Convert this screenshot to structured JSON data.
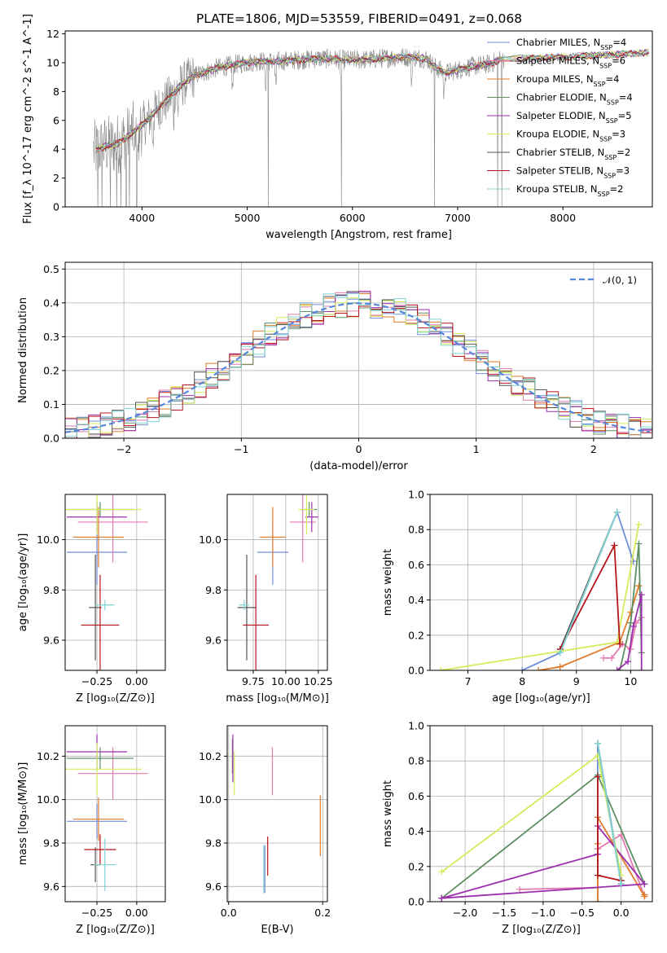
{
  "figure": {
    "title": "PLATE=1806, MJD=53559, FIBERID=0491, z=0.068"
  },
  "colors": {
    "Chabrier MILES": "#6f8ed9",
    "Salpeter MILES": "#e27bb0",
    "Kroupa MILES": "#e07b2b",
    "Chabrier ELODIE": "#5e8f63",
    "Salpeter ELODIE": "#9b2fae",
    "Kroupa ELODIE": "#d4ec5a",
    "Chabrier STELIB": "#555555",
    "Salpeter STELIB": "#b5151b",
    "Kroupa STELIB": "#7fd4d4",
    "data": "#888888",
    "normal": "#5588dd"
  },
  "chart_data": [
    {
      "id": "spectrum",
      "type": "line",
      "title": "PLATE=1806, MJD=53559, FIBERID=0491, z=0.068",
      "xlabel": "wavelength [Angstrom, rest frame]",
      "ylabel": "Flux [f_λ 10^-17 erg cm^-2 s^-1 A^-1]",
      "xlim": [
        3270,
        8850
      ],
      "ylim": [
        0,
        12.2
      ],
      "xticks": [
        "4000",
        "5000",
        "6000",
        "7000",
        "8000"
      ],
      "yticks": [
        "0",
        "2",
        "4",
        "6",
        "8",
        "10",
        "12"
      ],
      "grid": false,
      "legend_position": "right",
      "continuum": {
        "x": [
          3550,
          3650,
          3750,
          3850,
          3950,
          4050,
          4150,
          4250,
          4350,
          4500,
          4700,
          4900,
          5100,
          5300,
          5500,
          5700,
          5900,
          6100,
          6300,
          6500,
          6700,
          6800,
          6900,
          7000,
          7100,
          7200,
          7300,
          7400,
          7500,
          7700,
          8000,
          8300,
          8600,
          8800
        ],
        "y": [
          3.9,
          4.2,
          4.3,
          4.8,
          5.4,
          6.0,
          6.8,
          7.5,
          8.3,
          9.1,
          9.6,
          9.9,
          10.1,
          10.1,
          10.2,
          10.3,
          10.2,
          10.2,
          10.3,
          10.4,
          10.3,
          9.6,
          9.3,
          9.5,
          9.7,
          9.8,
          9.9,
          10.2,
          10.3,
          10.3,
          10.4,
          10.5,
          10.6,
          10.7
        ]
      },
      "series": [
        {
          "name": "Chabrier MILES, N_SSP=4"
        },
        {
          "name": "Salpeter MILES, N_SSP=6"
        },
        {
          "name": "Kroupa MILES, N_SSP=4"
        },
        {
          "name": "Chabrier ELODIE, N_SSP=4"
        },
        {
          "name": "Salpeter ELODIE, N_SSP=5"
        },
        {
          "name": "Kroupa ELODIE, N_SSP=3"
        },
        {
          "name": "Chabrier STELIB, N_SSP=2"
        },
        {
          "name": "Salpeter STELIB, N_SSP=3"
        },
        {
          "name": "Kroupa STELIB, N_SSP=2"
        }
      ]
    },
    {
      "id": "residuals",
      "type": "line",
      "xlabel": "(data-model)/error",
      "ylabel": "Normed distribution",
      "xlim": [
        -2.5,
        2.5
      ],
      "ylim": [
        0,
        0.52
      ],
      "xticks": [
        "−2",
        "−1",
        "0",
        "1",
        "2"
      ],
      "yticks": [
        "0.0",
        "0.1",
        "0.2",
        "0.3",
        "0.4",
        "0.5"
      ],
      "grid": true,
      "legend": "𝒩(0, 1)",
      "legend_position": "top-right",
      "bins": 50
    },
    {
      "id": "age-vs-Z",
      "type": "scatter",
      "xlabel": "Z [log₁₀(Z/Z⊙)]",
      "ylabel": "age  [log₁₀(age/yr)]",
      "xlim": [
        -0.45,
        0.18
      ],
      "ylim": [
        9.48,
        10.18
      ],
      "xticks": [
        "−0.25",
        "0.00"
      ],
      "yticks": [
        "9.6",
        "9.8",
        "10.0"
      ],
      "grid": true,
      "points": [
        {
          "model": "Chabrier MILES",
          "x": -0.25,
          "y": 9.95,
          "xerr": 0.19,
          "yerr": 0.13
        },
        {
          "model": "Salpeter MILES",
          "x": -0.15,
          "y": 10.07,
          "xerr": 0.22,
          "yerr": 0.16
        },
        {
          "model": "Kroupa MILES",
          "x": -0.24,
          "y": 10.01,
          "xerr": 0.16,
          "yerr": 0.12
        },
        {
          "model": "Chabrier ELODIE",
          "x": -0.23,
          "y": 10.12,
          "xerr": 0.21,
          "yerr": 0.03
        },
        {
          "model": "Salpeter ELODIE",
          "x": -0.25,
          "y": 10.09,
          "xerr": 0.19,
          "yerr": 0.06
        },
        {
          "model": "Kroupa ELODIE",
          "x": -0.25,
          "y": 10.12,
          "xerr": 0.28,
          "yerr": 0.1
        },
        {
          "model": "Chabrier STELIB",
          "x": -0.26,
          "y": 9.73,
          "xerr": 0.04,
          "yerr": 0.21
        },
        {
          "model": "Salpeter STELIB",
          "x": -0.23,
          "y": 9.66,
          "xerr": 0.12,
          "yerr": 0.2
        },
        {
          "model": "Kroupa STELIB",
          "x": -0.2,
          "y": 9.74,
          "xerr": 0.06,
          "yerr": 0.02
        }
      ]
    },
    {
      "id": "age-vs-mass",
      "type": "scatter",
      "xlabel": "mass [log₁₀(M/M⊙)]",
      "ylabel": "",
      "xlim": [
        9.55,
        10.32
      ],
      "ylim": [
        9.48,
        10.18
      ],
      "xticks": [
        "9.75",
        "10.00",
        "10.25"
      ],
      "yticks": [
        "9.6",
        "9.8",
        "10.0"
      ],
      "grid": true,
      "points": [
        {
          "model": "Chabrier MILES",
          "x": 9.9,
          "y": 9.95,
          "xerr": 0.12,
          "yerr": 0.13
        },
        {
          "model": "Salpeter MILES",
          "x": 10.13,
          "y": 10.07,
          "xerr": 0.1,
          "yerr": 0.16
        },
        {
          "model": "Kroupa MILES",
          "x": 9.9,
          "y": 10.01,
          "xerr": 0.1,
          "yerr": 0.12
        },
        {
          "model": "Chabrier ELODIE",
          "x": 10.18,
          "y": 10.12,
          "xerr": 0.06,
          "yerr": 0.03
        },
        {
          "model": "Salpeter ELODIE",
          "x": 10.2,
          "y": 10.09,
          "xerr": 0.05,
          "yerr": 0.06
        },
        {
          "model": "Kroupa ELODIE",
          "x": 10.16,
          "y": 10.12,
          "xerr": 0.06,
          "yerr": 0.1
        },
        {
          "model": "Chabrier STELIB",
          "x": 9.7,
          "y": 9.73,
          "xerr": 0.07,
          "yerr": 0.21
        },
        {
          "model": "Salpeter STELIB",
          "x": 9.77,
          "y": 9.66,
          "xerr": 0.1,
          "yerr": 0.2
        },
        {
          "model": "Kroupa STELIB",
          "x": 9.68,
          "y": 9.74,
          "xerr": 0.04,
          "yerr": 0.02
        }
      ]
    },
    {
      "id": "mass-weight-vs-age",
      "type": "line",
      "xlabel": "age  [log₁₀(age/yr)]",
      "ylabel": "mass weight",
      "xlim": [
        6.3,
        10.4
      ],
      "ylim": [
        0,
        1
      ],
      "xticks": [
        "7",
        "8",
        "9",
        "10"
      ],
      "yticks": [
        "0.0",
        "0.2",
        "0.4",
        "0.6",
        "0.8",
        "1.0"
      ],
      "grid": true,
      "series": [
        {
          "model": "Chabrier MILES",
          "x": [
            8.0,
            8.7,
            9.75,
            10.05
          ],
          "y": [
            0.0,
            0.1,
            0.9,
            0.62
          ]
        },
        {
          "model": "Salpeter MILES",
          "x": [
            9.5,
            9.65,
            9.85,
            10.0,
            10.1,
            10.2
          ],
          "y": [
            0.07,
            0.07,
            0.15,
            0.12,
            0.27,
            0.3
          ]
        },
        {
          "model": "Kroupa MILES",
          "x": [
            8.3,
            8.7,
            9.8,
            10.0,
            10.15
          ],
          "y": [
            0.0,
            0.02,
            0.16,
            0.33,
            0.48
          ]
        },
        {
          "model": "Chabrier ELODIE",
          "x": [
            9.8,
            10.0,
            10.15,
            10.2
          ],
          "y": [
            0.0,
            0.27,
            0.72,
            0.1
          ]
        },
        {
          "model": "Salpeter ELODIE",
          "x": [
            9.75,
            9.95,
            10.05,
            10.2,
            10.2
          ],
          "y": [
            0.0,
            0.05,
            0.25,
            0.43,
            0.0
          ]
        },
        {
          "model": "Kroupa ELODIE",
          "x": [
            6.5,
            9.75,
            10.15
          ],
          "y": [
            0.0,
            0.16,
            0.83
          ]
        },
        {
          "model": "Chabrier STELIB",
          "x": [
            8.7,
            9.75
          ],
          "y": [
            0.12,
            0.9
          ]
        },
        {
          "model": "Salpeter STELIB",
          "x": [
            8.7,
            9.7,
            9.8
          ],
          "y": [
            0.12,
            0.71,
            0.15
          ]
        },
        {
          "model": "Kroupa STELIB",
          "x": [
            8.7,
            9.75
          ],
          "y": [
            0.1,
            0.9
          ]
        }
      ]
    },
    {
      "id": "mass-vs-Z",
      "type": "scatter",
      "xlabel": "Z [log₁₀(Z/Z⊙)]",
      "ylabel": "mass [log₁₀(M/M⊙)]",
      "xlim": [
        -0.45,
        0.18
      ],
      "ylim": [
        9.53,
        10.34
      ],
      "xticks": [
        "−0.25",
        "0.00"
      ],
      "yticks": [
        "9.6",
        "9.8",
        "10.0",
        "10.2"
      ],
      "grid": true,
      "points": [
        {
          "model": "Chabrier MILES",
          "x": -0.25,
          "y": 9.9,
          "xerr": 0.19,
          "yerr": 0.08
        },
        {
          "model": "Salpeter MILES",
          "x": -0.15,
          "y": 10.12,
          "xerr": 0.22,
          "yerr": 0.12
        },
        {
          "model": "Kroupa MILES",
          "x": -0.24,
          "y": 9.91,
          "xerr": 0.16,
          "yerr": 0.1
        },
        {
          "model": "Chabrier ELODIE",
          "x": -0.23,
          "y": 10.19,
          "xerr": 0.21,
          "yerr": 0.05
        },
        {
          "model": "Salpeter ELODIE",
          "x": -0.25,
          "y": 10.22,
          "xerr": 0.19,
          "yerr": 0.08
        },
        {
          "model": "Kroupa ELODIE",
          "x": -0.25,
          "y": 10.14,
          "xerr": 0.28,
          "yerr": 0.12
        },
        {
          "model": "Chabrier STELIB",
          "x": -0.26,
          "y": 9.7,
          "xerr": 0.03,
          "yerr": 0.08
        },
        {
          "model": "Salpeter STELIB",
          "x": -0.23,
          "y": 9.77,
          "xerr": 0.1,
          "yerr": 0.07
        },
        {
          "model": "Kroupa STELIB",
          "x": -0.2,
          "y": 9.7,
          "xerr": 0.07,
          "yerr": 0.12
        }
      ]
    },
    {
      "id": "mass-vs-EBV",
      "type": "scatter",
      "xlabel": "E(B-V)",
      "ylabel": "",
      "xlim": [
        -0.003,
        0.21
      ],
      "ylim": [
        9.53,
        10.34
      ],
      "xticks": [
        "0.0",
        "0.2"
      ],
      "yticks": [
        "9.6",
        "9.8",
        "10.0",
        "10.2"
      ],
      "grid": true,
      "points": [
        {
          "model": "Chabrier MILES",
          "x": 0.077,
          "y": 9.68,
          "yerr": 0.11
        },
        {
          "model": "Salpeter MILES",
          "x": 0.093,
          "y": 10.13,
          "yerr": 0.11
        },
        {
          "model": "Kroupa MILES",
          "x": 0.195,
          "y": 9.88,
          "yerr": 0.14
        },
        {
          "model": "Chabrier ELODIE",
          "x": 0.008,
          "y": 10.2,
          "yerr": 0.08
        },
        {
          "model": "Salpeter ELODIE",
          "x": 0.009,
          "y": 10.19,
          "yerr": 0.11
        },
        {
          "model": "Kroupa ELODIE",
          "x": 0.012,
          "y": 10.12,
          "yerr": 0.1
        },
        {
          "model": "Chabrier STELIB",
          "x": 0.075,
          "y": 9.68,
          "yerr": 0.1
        },
        {
          "model": "Salpeter STELIB",
          "x": 0.083,
          "y": 9.74,
          "yerr": 0.09
        },
        {
          "model": "Kroupa STELIB",
          "x": 0.075,
          "y": 9.68,
          "yerr": 0.11
        }
      ]
    },
    {
      "id": "mass-weight-vs-Z",
      "type": "line",
      "xlabel": "Z [log₁₀(Z/Z⊙)]",
      "ylabel": "mass weight",
      "xlim": [
        -2.45,
        0.4
      ],
      "ylim": [
        0,
        1
      ],
      "xticks": [
        "−2.0",
        "−1.5",
        "−1.0",
        "−0.5",
        "0.0"
      ],
      "yticks": [
        "0.0",
        "0.2",
        "0.4",
        "0.6",
        "0.8",
        "1.0"
      ],
      "grid": true,
      "series": [
        {
          "model": "Chabrier MILES",
          "x": [
            -0.3,
            -0.3,
            0.0,
            0.0
          ],
          "y": [
            0.0,
            0.9,
            0.12,
            0.1
          ]
        },
        {
          "model": "Salpeter MILES",
          "x": [
            -1.3,
            -0.3,
            -0.3,
            -0.3,
            0.0,
            0.3
          ],
          "y": [
            0.07,
            0.08,
            0.27,
            0.3,
            0.38,
            0.03
          ]
        },
        {
          "model": "Kroupa MILES",
          "x": [
            -0.3,
            -0.3,
            -0.3,
            0.3,
            0.3
          ],
          "y": [
            0.0,
            0.33,
            0.48,
            0.03,
            0.04
          ]
        },
        {
          "model": "Chabrier ELODIE",
          "x": [
            -2.3,
            -0.3,
            0.3
          ],
          "y": [
            0.02,
            0.72,
            0.1
          ]
        },
        {
          "model": "Salpeter ELODIE",
          "x": [
            -2.3,
            -0.3,
            -0.3,
            0.3,
            -2.3
          ],
          "y": [
            0.02,
            0.27,
            0.43,
            0.1,
            0.02
          ]
        },
        {
          "model": "Kroupa ELODIE",
          "x": [
            -2.3,
            -0.3,
            0.0
          ],
          "y": [
            0.17,
            0.83,
            0.15
          ]
        },
        {
          "model": "Chabrier STELIB",
          "x": [
            -0.3,
            0.0
          ],
          "y": [
            0.9,
            0.1
          ]
        },
        {
          "model": "Salpeter STELIB",
          "x": [
            -0.3,
            -0.3,
            0.0
          ],
          "y": [
            0.71,
            0.15,
            0.12
          ]
        },
        {
          "model": "Kroupa STELIB",
          "x": [
            -0.3,
            0.0
          ],
          "y": [
            0.9,
            0.1
          ]
        }
      ]
    }
  ]
}
